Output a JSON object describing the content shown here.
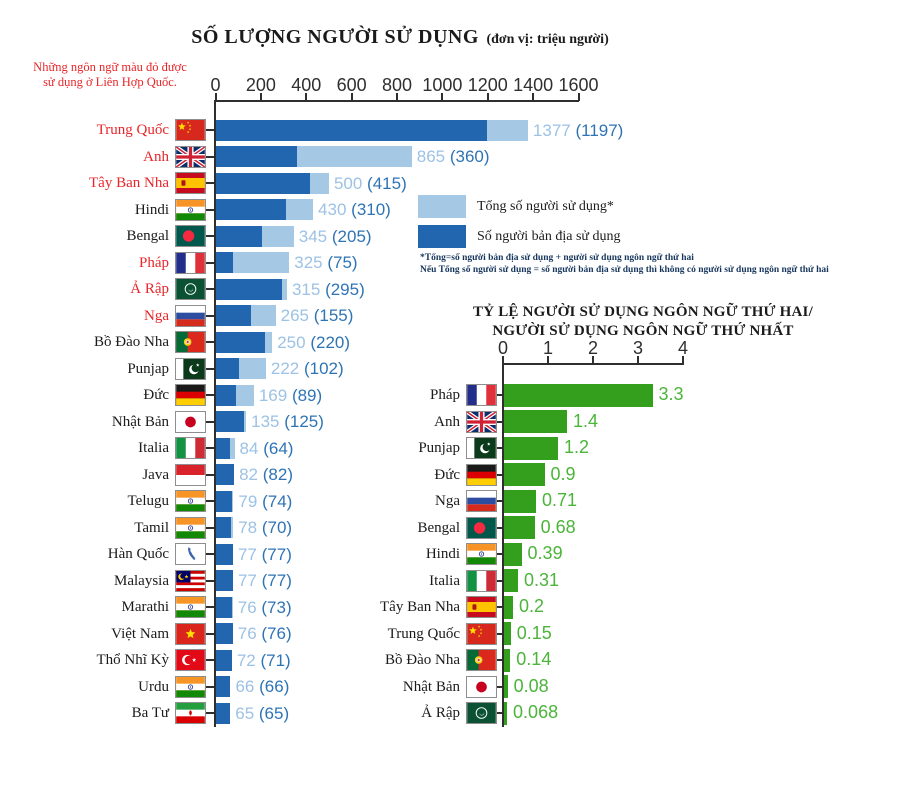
{
  "note": {
    "line1": "Những ngôn ngữ màu đỏ được",
    "line2": "sử dụng ở Liên Hợp Quốc."
  },
  "legend": {
    "total_label": "Tổng số người sử dụng*",
    "native_label": "Số người bản địa sử dụng"
  },
  "footnote": {
    "line1": "*Tổng=số người bản địa sử dụng + người sử dụng ngôn ngữ thứ hai",
    "line2": "Nếu Tổng số người sử dụng = số người bản địa sử dụng thì không có người sử dụng ngôn ngữ thứ hai"
  },
  "colors": {
    "total_bar": "#a5c8e4",
    "native_bar": "#2166ae",
    "total_value_text": "#9cc2e5",
    "native_value_text": "#2e74b5",
    "ratio_bar": "#339f1d",
    "ratio_value_text": "#4bb53a",
    "red_label": "#e8262a",
    "axis": "#2f2f2f"
  },
  "chart_data": [
    {
      "type": "bar",
      "orientation": "horizontal",
      "title": "SỐ LƯỢNG NGƯỜI SỬ DỤNG",
      "subtitle": "(đơn vị: triệu người)",
      "xlim": [
        0,
        1600
      ],
      "xticks": [
        0,
        200,
        400,
        600,
        800,
        1000,
        1200,
        1400,
        1600
      ],
      "legend": [
        "Tổng số người sử dụng*",
        "Số người bản địa sử dụng"
      ],
      "rows": [
        {
          "label": "Trung Quốc",
          "flag": "china",
          "un_language": true,
          "total": 1377,
          "native": 1197
        },
        {
          "label": "Anh",
          "flag": "uk",
          "un_language": true,
          "total": 865,
          "native": 360
        },
        {
          "label": "Tây Ban Nha",
          "flag": "spain",
          "un_language": true,
          "total": 500,
          "native": 415
        },
        {
          "label": "Hindi",
          "flag": "india",
          "un_language": false,
          "total": 430,
          "native": 310
        },
        {
          "label": "Bengal",
          "flag": "bangladesh",
          "un_language": false,
          "total": 345,
          "native": 205
        },
        {
          "label": "Pháp",
          "flag": "france",
          "un_language": true,
          "total": 325,
          "native": 75
        },
        {
          "label": "Ả Rập",
          "flag": "arab-league",
          "un_language": true,
          "total": 315,
          "native": 295
        },
        {
          "label": "Nga",
          "flag": "russia",
          "un_language": true,
          "total": 265,
          "native": 155
        },
        {
          "label": "Bồ Đào Nha",
          "flag": "portugal",
          "un_language": false,
          "total": 250,
          "native": 220
        },
        {
          "label": "Punjap",
          "flag": "pakistan",
          "un_language": false,
          "total": 222,
          "native": 102
        },
        {
          "label": "Đức",
          "flag": "germany",
          "un_language": false,
          "total": 169,
          "native": 89
        },
        {
          "label": "Nhật Bản",
          "flag": "japan",
          "un_language": false,
          "total": 135,
          "native": 125
        },
        {
          "label": "Italia",
          "flag": "italy",
          "un_language": false,
          "total": 84,
          "native": 64
        },
        {
          "label": "Java",
          "flag": "indonesia",
          "un_language": false,
          "total": 82,
          "native": 82
        },
        {
          "label": "Telugu",
          "flag": "india",
          "un_language": false,
          "total": 79,
          "native": 74
        },
        {
          "label": "Tamil",
          "flag": "india",
          "un_language": false,
          "total": 78,
          "native": 70
        },
        {
          "label": "Hàn Quốc",
          "flag": "korea",
          "un_language": false,
          "total": 77,
          "native": 77
        },
        {
          "label": "Malaysia",
          "flag": "malaysia",
          "un_language": false,
          "total": 77,
          "native": 77
        },
        {
          "label": "Marathi",
          "flag": "india",
          "un_language": false,
          "total": 76,
          "native": 73
        },
        {
          "label": "Việt Nam",
          "flag": "vietnam",
          "un_language": false,
          "total": 76,
          "native": 76
        },
        {
          "label": "Thổ Nhĩ Kỳ",
          "flag": "turkey",
          "un_language": false,
          "total": 72,
          "native": 71
        },
        {
          "label": "Urdu",
          "flag": "india",
          "un_language": false,
          "total": 66,
          "native": 66
        },
        {
          "label": "Ba Tư",
          "flag": "iran",
          "un_language": false,
          "total": 65,
          "native": 65
        }
      ]
    },
    {
      "type": "bar",
      "orientation": "horizontal",
      "title": "TỶ LỆ NGƯỜI SỬ DỤNG NGÔN NGỮ THỨ HAI/ NGƯỜI SỬ DỤNG NGÔN NGỮ THỨ NHẤT",
      "title_lines": [
        "TỶ LỆ NGƯỜI SỬ DỤNG NGÔN NGỮ THỨ HAI/",
        "NGƯỜI SỬ DỤNG NGÔN NGỮ THỨ NHẤT"
      ],
      "xlim": [
        0,
        4
      ],
      "xticks": [
        0,
        1,
        2,
        3,
        4
      ],
      "rows": [
        {
          "label": "Pháp",
          "flag": "france",
          "value": "3.3"
        },
        {
          "label": "Anh",
          "flag": "uk",
          "value": "1.4"
        },
        {
          "label": "Punjap",
          "flag": "pakistan",
          "value": "1.2"
        },
        {
          "label": "Đức",
          "flag": "germany",
          "value": "0.9"
        },
        {
          "label": "Nga",
          "flag": "russia",
          "value": "0.71"
        },
        {
          "label": "Bengal",
          "flag": "bangladesh",
          "value": "0.68"
        },
        {
          "label": "Hindi",
          "flag": "india",
          "value": "0.39"
        },
        {
          "label": "Italia",
          "flag": "italy",
          "value": "0.31"
        },
        {
          "label": "Tây Ban Nha",
          "flag": "spain",
          "value": "0.2"
        },
        {
          "label": "Trung Quốc",
          "flag": "china",
          "value": "0.15"
        },
        {
          "label": "Bồ Đào Nha",
          "flag": "portugal",
          "value": "0.14"
        },
        {
          "label": "Nhật Bản",
          "flag": "japan",
          "value": "0.08"
        },
        {
          "label": "Ả Rập",
          "flag": "arab-league",
          "value": "0.068"
        }
      ]
    }
  ]
}
